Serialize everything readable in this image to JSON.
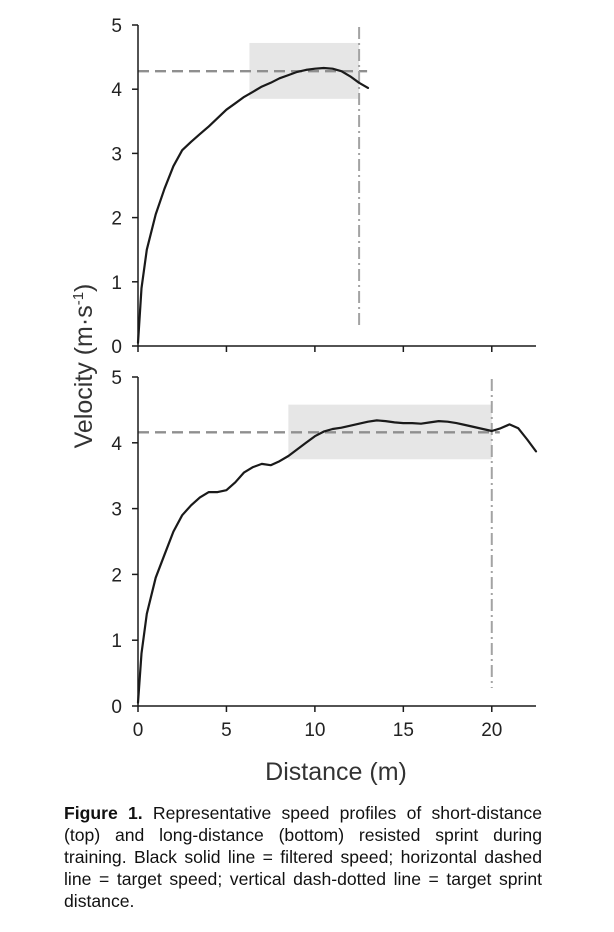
{
  "figure": {
    "ylabel": "Velocity (m·s⁻¹)",
    "ylabel_main": "Velocity (m·s",
    "ylabel_sup": "-1",
    "ylabel_end": ")",
    "xlabel": "Distance (m)"
  },
  "caption": {
    "label": "Figure 1.",
    "text": "Representative speed profiles of short-distance (top) and long-distance (bottom) resisted sprint during training. Black solid line = filtered speed; horizontal dashed line = target speed; vertical dash-dotted line = target sprint distance."
  },
  "chart_data": [
    {
      "type": "line",
      "panel": "top",
      "xlim": [
        0,
        22.5
      ],
      "ylim": [
        0,
        5
      ],
      "x_ticks": [
        "0",
        "5",
        "10",
        "15",
        "20"
      ],
      "y_ticks": [
        "0",
        "1",
        "2",
        "3",
        "4",
        "5"
      ],
      "series": [
        {
          "x": [
            0,
            0.2,
            0.5,
            1,
            1.5,
            2,
            2.5,
            3,
            3.5,
            4,
            4.5,
            5,
            5.5,
            6,
            6.5,
            7,
            7.5,
            8,
            8.5,
            9,
            9.5,
            10,
            10.5,
            11,
            11.5,
            12,
            12.5,
            13
          ],
          "y": [
            0.05,
            0.9,
            1.5,
            2.05,
            2.45,
            2.8,
            3.05,
            3.18,
            3.3,
            3.42,
            3.55,
            3.68,
            3.78,
            3.88,
            3.96,
            4.04,
            4.1,
            4.17,
            4.22,
            4.27,
            4.3,
            4.32,
            4.33,
            4.32,
            4.28,
            4.2,
            4.1,
            4.02
          ]
        }
      ],
      "target_speed": 4.28,
      "target_distance": 12.5,
      "shaded_region": {
        "x": [
          6.3,
          12.5
        ],
        "y": [
          3.85,
          4.72
        ]
      }
    },
    {
      "type": "line",
      "panel": "bottom",
      "xlim": [
        0,
        22.5
      ],
      "ylim": [
        0,
        5
      ],
      "x_ticks": [
        "0",
        "5",
        "10",
        "15",
        "20"
      ],
      "y_ticks": [
        "0",
        "1",
        "2",
        "3",
        "4",
        "5"
      ],
      "series": [
        {
          "x": [
            0,
            0.2,
            0.5,
            1,
            1.5,
            2,
            2.5,
            3,
            3.5,
            4,
            4.5,
            5,
            5.5,
            6,
            6.5,
            7,
            7.5,
            8,
            8.5,
            9,
            9.5,
            10,
            10.5,
            11,
            11.5,
            12,
            12.5,
            13,
            13.5,
            14,
            14.5,
            15,
            15.5,
            16,
            16.5,
            17,
            17.5,
            18,
            18.5,
            19,
            19.5,
            20,
            20.5,
            21,
            21.5,
            22,
            22.5
          ],
          "y": [
            0.05,
            0.8,
            1.4,
            1.95,
            2.3,
            2.65,
            2.9,
            3.05,
            3.17,
            3.25,
            3.25,
            3.28,
            3.4,
            3.55,
            3.63,
            3.68,
            3.66,
            3.72,
            3.8,
            3.9,
            4.0,
            4.1,
            4.17,
            4.21,
            4.23,
            4.26,
            4.29,
            4.32,
            4.34,
            4.33,
            4.31,
            4.3,
            4.3,
            4.29,
            4.31,
            4.33,
            4.32,
            4.3,
            4.27,
            4.24,
            4.21,
            4.18,
            4.22,
            4.28,
            4.22,
            4.05,
            3.87
          ]
        }
      ],
      "target_speed": 4.16,
      "target_distance": 20,
      "shaded_region": {
        "x": [
          8.5,
          20
        ],
        "y": [
          3.75,
          4.58
        ]
      }
    }
  ]
}
